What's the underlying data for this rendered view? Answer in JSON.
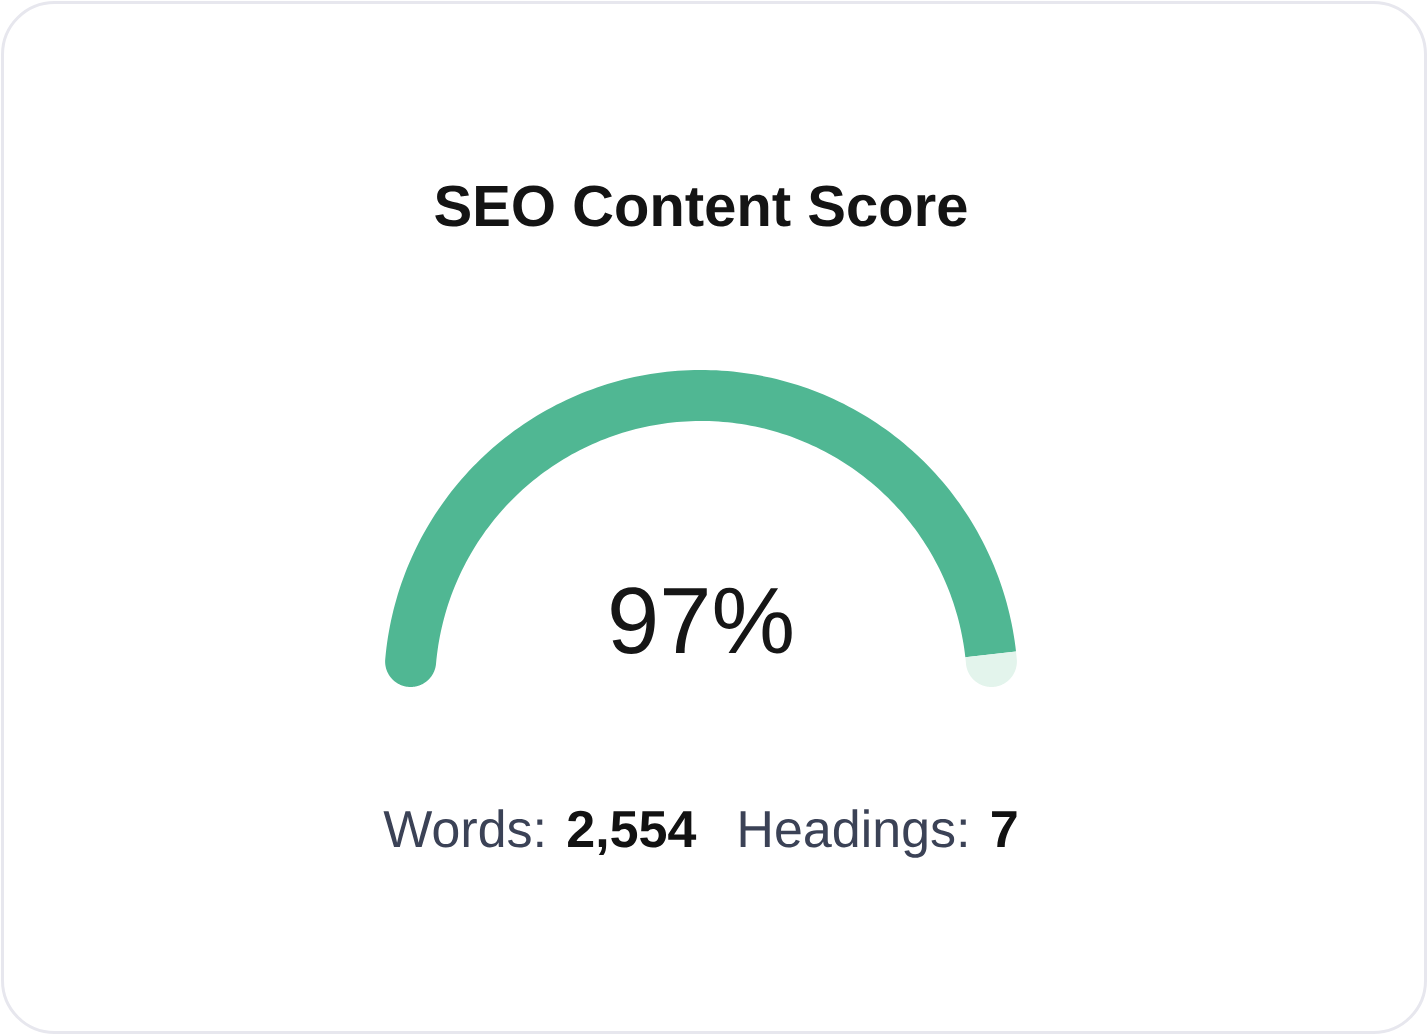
{
  "chart_data": {
    "type": "donut",
    "title": "SEO Content Score",
    "categories": [
      null,
      null
    ],
    "values": [
      97,
      3
    ],
    "colors": [
      "#50b793",
      "#e3f4ec"
    ],
    "value_labels": [
      "97%",
      null
    ],
    "annotations": [
      "Words: **2,554**",
      "Headings: **7**"
    ]
  }
}
